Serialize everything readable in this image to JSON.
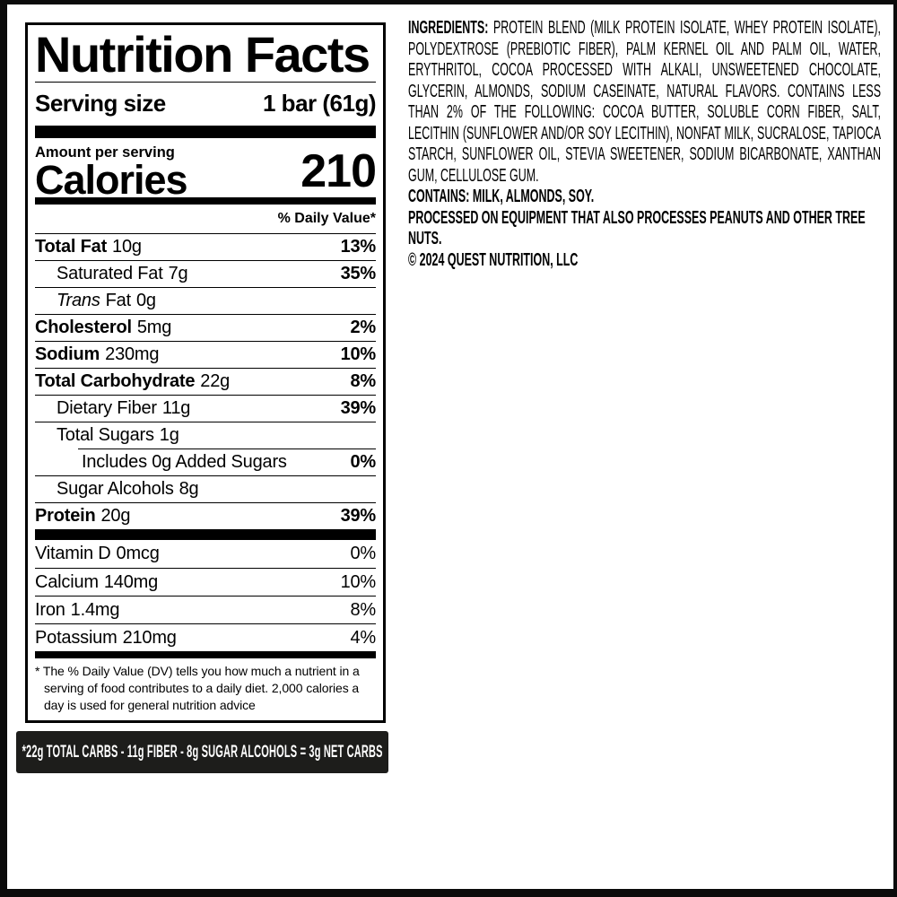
{
  "label": {
    "title": "Nutrition Facts",
    "serving_size_label": "Serving size",
    "serving_size_value": "1 bar (61g)",
    "amount_per_serving": "Amount per serving",
    "calories_label": "Calories",
    "calories_value": "210",
    "daily_value_header": "% Daily Value*",
    "rows": [
      {
        "name": "Total Fat",
        "amount": "10g",
        "dv": "13%"
      },
      {
        "name": "Saturated Fat",
        "amount": "7g",
        "dv": "35%"
      },
      {
        "name_italic": "Trans",
        "name": "Fat",
        "amount": "0g",
        "dv": ""
      },
      {
        "name": "Cholesterol",
        "amount": "5mg",
        "dv": "2%"
      },
      {
        "name": "Sodium",
        "amount": "230mg",
        "dv": "10%"
      },
      {
        "name": "Total Carbohydrate",
        "amount": "22g",
        "dv": "8%"
      },
      {
        "name": "Dietary Fiber",
        "amount": "11g",
        "dv": "39%"
      },
      {
        "name": "Total Sugars",
        "amount": "1g",
        "dv": ""
      },
      {
        "name": "Includes 0g Added Sugars",
        "amount": "",
        "dv": "0%"
      },
      {
        "name": "Sugar Alcohols",
        "amount": "8g",
        "dv": ""
      },
      {
        "name": "Protein",
        "amount": "20g",
        "dv": "39%"
      }
    ],
    "vitamins": [
      {
        "name": "Vitamin D",
        "amount": "0mcg",
        "dv": "0%"
      },
      {
        "name": "Calcium",
        "amount": "140mg",
        "dv": "10%"
      },
      {
        "name": "Iron",
        "amount": "1.4mg",
        "dv": "8%"
      },
      {
        "name": "Potassium",
        "amount": "210mg",
        "dv": "4%"
      }
    ],
    "footnote": "* The % Daily Value (DV) tells you how much a nutrient in a serving of food contributes to a daily diet. 2,000 calories a day is used for general nutrition advice"
  },
  "net_carbs_banner": "*22g TOTAL CARBS - 11g FIBER - 8g SUGAR ALCOHOLS = 3g NET CARBS",
  "ingredients": {
    "heading": "INGREDIENTS:",
    "body": " PROTEIN BLEND (MILK PROTEIN ISOLATE, WHEY PROTEIN ISOLATE), POLYDEXTROSE (PREBIOTIC FIBER), PALM KERNEL OIL AND PALM OIL, WATER, ERYTHRITOL, COCOA PROCESSED WITH ALKALI, UNSWEETENED CHOCOLATE, GLYCERIN, ALMONDS, SODIUM CASEINATE, NATURAL FLAVORS. CONTAINS LESS THAN 2% OF THE FOLLOWING: COCOA BUTTER, SOLUBLE CORN FIBER, SALT, LECITHIN (SUNFLOWER AND/OR SOY LECITHIN), NONFAT MILK, SUCRALOSE, TAPIOCA STARCH, SUNFLOWER OIL, STEVIA SWEETENER, SODIUM BICARBONATE, XANTHAN GUM, CELLULOSE GUM.",
    "contains": "CONTAINS: MILK, ALMONDS, SOY.",
    "allergen_warning": "PROCESSED ON EQUIPMENT THAT ALSO PROCESSES PEANUTS AND OTHER TREE NUTS.",
    "copyright": "© 2024 QUEST NUTRITION, LLC"
  },
  "colors": {
    "text": "#000000",
    "banner_bg": "#1d1d1b",
    "banner_text": "#ffffff",
    "edge": "#0b0b0b"
  }
}
